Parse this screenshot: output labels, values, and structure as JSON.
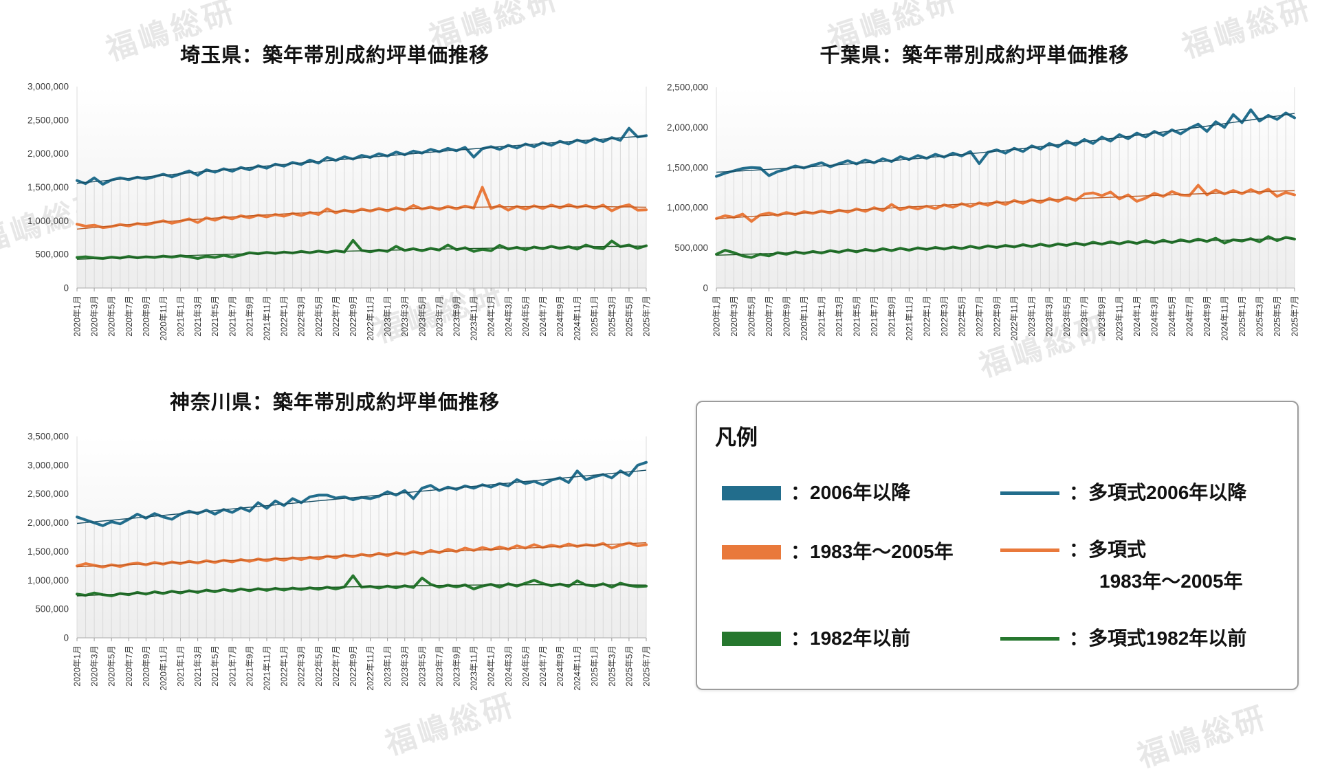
{
  "watermark": {
    "text": "福嶋総研"
  },
  "colors": {
    "s2006": "#226d8c",
    "s1983": "#e9793b",
    "s1982": "#26772e",
    "t2006": "#174f66",
    "t1983": "#c05a20",
    "t1982": "#1b5a22",
    "dropline": "#d8d8d8",
    "axis": "#b9b9b9",
    "plot_edge": "#dcdcdc",
    "tick_label": "#3c3c3c"
  },
  "legend": {
    "title": "凡例",
    "rows": [
      {
        "left": {
          "label": "：2006年以降",
          "swatch": "thick-bar"
        },
        "right": {
          "label": "：多項式2006年以降",
          "swatch": "thin-line"
        }
      },
      {
        "left": {
          "label": "：1983年〜2005年",
          "swatch": "thick-bar"
        },
        "right": {
          "label": "：多項式",
          "label2": "1983年〜2005年",
          "swatch": "thin-line"
        }
      },
      {
        "left": {
          "label": "：1982年以前",
          "swatch": "thick-bar"
        },
        "right": {
          "label": "：多項式1982年以前",
          "swatch": "thin-line"
        }
      }
    ]
  },
  "chart_data": [
    {
      "type": "line",
      "title": "埼玉県：築年帯別成約坪単価推移",
      "xlabel": "",
      "ylabel": "",
      "ylim": [
        0,
        3000000
      ],
      "y_tick_step": 500000,
      "x_interval": "monthly",
      "x_tick_every": 2,
      "droplines_to": "2006年以降",
      "x_tick_labels": [
        "2020年1月",
        "2020年3月",
        "2020年5月",
        "2020年7月",
        "2020年9月",
        "2020年11月",
        "2021年1月",
        "2021年3月",
        "2021年5月",
        "2021年7月",
        "2021年9月",
        "2021年11月",
        "2022年1月",
        "2022年3月",
        "2022年5月",
        "2022年7月",
        "2022年9月",
        "2022年11月",
        "2023年1月",
        "2023年3月",
        "2023年5月",
        "2023年7月",
        "2023年9月",
        "2023年11月",
        "2024年1月",
        "2024年3月",
        "2024年5月",
        "2024年7月",
        "2024年9月",
        "2024年11月",
        "2025年1月",
        "2025年3月",
        "2025年5月",
        "2025年7月"
      ],
      "series": [
        {
          "name": "2006年以降",
          "color": "#226d8c",
          "width": 4,
          "values": [
            1600000,
            1555000,
            1640000,
            1545000,
            1610000,
            1640000,
            1615000,
            1650000,
            1625000,
            1660000,
            1695000,
            1655000,
            1700000,
            1745000,
            1680000,
            1760000,
            1725000,
            1775000,
            1740000,
            1795000,
            1760000,
            1820000,
            1785000,
            1845000,
            1815000,
            1870000,
            1840000,
            1905000,
            1860000,
            1945000,
            1900000,
            1955000,
            1920000,
            1975000,
            1945000,
            2000000,
            1965000,
            2025000,
            1985000,
            2040000,
            2010000,
            2065000,
            2030000,
            2080000,
            2045000,
            2095000,
            1950000,
            2075000,
            2105000,
            2065000,
            2125000,
            2085000,
            2145000,
            2105000,
            2165000,
            2125000,
            2185000,
            2145000,
            2205000,
            2165000,
            2225000,
            2180000,
            2240000,
            2200000,
            2380000,
            2250000,
            2270000
          ]
        },
        {
          "name": "1983年〜2005年",
          "color": "#e9793b",
          "width": 4,
          "values": [
            950000,
            920000,
            935000,
            900000,
            915000,
            945000,
            925000,
            960000,
            940000,
            975000,
            1000000,
            965000,
            995000,
            1030000,
            975000,
            1045000,
            1010000,
            1060000,
            1030000,
            1075000,
            1045000,
            1085000,
            1060000,
            1095000,
            1070000,
            1110000,
            1080000,
            1125000,
            1095000,
            1180000,
            1120000,
            1160000,
            1130000,
            1175000,
            1145000,
            1185000,
            1150000,
            1195000,
            1160000,
            1230000,
            1175000,
            1205000,
            1170000,
            1215000,
            1180000,
            1220000,
            1190000,
            1500000,
            1185000,
            1230000,
            1160000,
            1215000,
            1175000,
            1225000,
            1185000,
            1235000,
            1195000,
            1240000,
            1200000,
            1230000,
            1190000,
            1235000,
            1150000,
            1210000,
            1240000,
            1160000,
            1165000
          ]
        },
        {
          "name": "1982年以前",
          "color": "#26772e",
          "width": 4,
          "values": [
            455000,
            465000,
            450000,
            440000,
            460000,
            445000,
            470000,
            450000,
            465000,
            455000,
            475000,
            460000,
            480000,
            465000,
            440000,
            470000,
            455000,
            485000,
            460000,
            490000,
            525000,
            510000,
            530000,
            515000,
            535000,
            520000,
            545000,
            525000,
            550000,
            530000,
            555000,
            535000,
            710000,
            560000,
            540000,
            565000,
            545000,
            620000,
            560000,
            585000,
            555000,
            590000,
            565000,
            640000,
            570000,
            600000,
            545000,
            575000,
            555000,
            635000,
            580000,
            605000,
            570000,
            610000,
            585000,
            620000,
            590000,
            615000,
            580000,
            640000,
            600000,
            585000,
            700000,
            615000,
            640000,
            590000,
            630000
          ]
        }
      ],
      "trend_series": [
        {
          "name": "多項式2006年以降",
          "fit": "poly2",
          "of": 0,
          "color": "#174f66"
        },
        {
          "name": "多項式1983年〜2005年",
          "fit": "poly2",
          "of": 1,
          "color": "#c05a20"
        },
        {
          "name": "多項式1982年以前",
          "fit": "poly2",
          "of": 2,
          "color": "#1b5a22"
        }
      ]
    },
    {
      "type": "line",
      "title": "千葉県：築年帯別成約坪単価推移",
      "xlabel": "",
      "ylabel": "",
      "ylim": [
        0,
        2500000
      ],
      "y_tick_step": 500000,
      "x_interval": "monthly",
      "x_tick_every": 2,
      "droplines_to": "2006年以降",
      "x_tick_labels": [
        "2020年1月",
        "2020年3月",
        "2020年5月",
        "2020年7月",
        "2020年9月",
        "2020年11月",
        "2021年1月",
        "2021年3月",
        "2021年5月",
        "2021年7月",
        "2021年9月",
        "2021年11月",
        "2022年1月",
        "2022年3月",
        "2022年5月",
        "2022年7月",
        "2022年9月",
        "2022年11月",
        "2023年1月",
        "2023年3月",
        "2023年5月",
        "2023年7月",
        "2023年9月",
        "2023年11月",
        "2024年1月",
        "2024年3月",
        "2024年5月",
        "2024年7月",
        "2024年9月",
        "2024年11月",
        "2025年1月",
        "2025年3月",
        "2025年5月",
        "2025年7月"
      ],
      "series": [
        {
          "name": "2006年以降",
          "color": "#226d8c",
          "width": 4,
          "values": [
            1390000,
            1430000,
            1460000,
            1490000,
            1500000,
            1495000,
            1400000,
            1450000,
            1480000,
            1520000,
            1495000,
            1530000,
            1560000,
            1510000,
            1550000,
            1585000,
            1545000,
            1595000,
            1560000,
            1610000,
            1575000,
            1635000,
            1600000,
            1650000,
            1615000,
            1665000,
            1630000,
            1680000,
            1645000,
            1700000,
            1550000,
            1690000,
            1720000,
            1680000,
            1740000,
            1700000,
            1770000,
            1730000,
            1800000,
            1760000,
            1830000,
            1780000,
            1850000,
            1800000,
            1880000,
            1830000,
            1910000,
            1860000,
            1930000,
            1880000,
            1950000,
            1900000,
            1970000,
            1920000,
            1990000,
            2040000,
            1950000,
            2070000,
            2000000,
            2160000,
            2060000,
            2220000,
            2080000,
            2150000,
            2100000,
            2180000,
            2120000
          ]
        },
        {
          "name": "1983年〜2005年",
          "color": "#e9793b",
          "width": 4,
          "values": [
            865000,
            900000,
            880000,
            920000,
            830000,
            910000,
            935000,
            905000,
            940000,
            915000,
            950000,
            930000,
            960000,
            935000,
            970000,
            945000,
            985000,
            955000,
            1000000,
            965000,
            1040000,
            975000,
            1010000,
            985000,
            1020000,
            990000,
            1035000,
            1005000,
            1050000,
            1015000,
            1060000,
            1030000,
            1075000,
            1040000,
            1090000,
            1055000,
            1100000,
            1065000,
            1115000,
            1080000,
            1130000,
            1090000,
            1170000,
            1185000,
            1150000,
            1195000,
            1110000,
            1160000,
            1080000,
            1120000,
            1180000,
            1140000,
            1200000,
            1160000,
            1150000,
            1280000,
            1160000,
            1220000,
            1170000,
            1215000,
            1175000,
            1225000,
            1180000,
            1230000,
            1140000,
            1190000,
            1160000
          ]
        },
        {
          "name": "1982年以前",
          "color": "#26772e",
          "width": 4,
          "values": [
            420000,
            470000,
            440000,
            400000,
            380000,
            420000,
            400000,
            440000,
            420000,
            450000,
            430000,
            455000,
            435000,
            465000,
            445000,
            475000,
            450000,
            480000,
            460000,
            490000,
            465000,
            495000,
            470000,
            500000,
            480000,
            505000,
            485000,
            510000,
            490000,
            520000,
            495000,
            525000,
            505000,
            530000,
            510000,
            540000,
            515000,
            545000,
            520000,
            550000,
            530000,
            560000,
            535000,
            570000,
            545000,
            575000,
            550000,
            580000,
            555000,
            590000,
            560000,
            595000,
            565000,
            600000,
            575000,
            610000,
            580000,
            620000,
            560000,
            600000,
            585000,
            615000,
            575000,
            640000,
            590000,
            630000,
            610000
          ]
        }
      ],
      "trend_series": [
        {
          "name": "多項式2006年以降",
          "fit": "poly2",
          "of": 0,
          "color": "#174f66"
        },
        {
          "name": "多項式1983年〜2005年",
          "fit": "poly2",
          "of": 1,
          "color": "#c05a20"
        },
        {
          "name": "多項式1982年以前",
          "fit": "poly2",
          "of": 2,
          "color": "#1b5a22"
        }
      ]
    },
    {
      "type": "line",
      "title": "神奈川県：築年帯別成約坪単価推移",
      "xlabel": "",
      "ylabel": "",
      "ylim": [
        0,
        3500000
      ],
      "y_tick_step": 500000,
      "x_interval": "monthly",
      "x_tick_every": 2,
      "droplines_to": "2006年以降",
      "x_tick_labels": [
        "2020年1月",
        "2020年3月",
        "2020年5月",
        "2020年7月",
        "2020年9月",
        "2020年11月",
        "2021年1月",
        "2021年3月",
        "2021年5月",
        "2021年7月",
        "2021年9月",
        "2021年11月",
        "2022年1月",
        "2022年3月",
        "2022年5月",
        "2022年7月",
        "2022年9月",
        "2022年11月",
        "2023年1月",
        "2023年3月",
        "2023年5月",
        "2023年7月",
        "2023年9月",
        "2023年11月",
        "2024年1月",
        "2024年3月",
        "2024年5月",
        "2024年7月",
        "2024年9月",
        "2024年11月",
        "2025年1月",
        "2025年3月",
        "2025年5月",
        "2025年7月"
      ],
      "series": [
        {
          "name": "2006年以降",
          "color": "#226d8c",
          "width": 4,
          "values": [
            2100000,
            2050000,
            2000000,
            1950000,
            2020000,
            1980000,
            2060000,
            2150000,
            2080000,
            2160000,
            2100000,
            2060000,
            2150000,
            2200000,
            2160000,
            2220000,
            2150000,
            2230000,
            2180000,
            2260000,
            2200000,
            2350000,
            2250000,
            2380000,
            2300000,
            2420000,
            2350000,
            2450000,
            2480000,
            2480000,
            2430000,
            2450000,
            2400000,
            2440000,
            2420000,
            2460000,
            2540000,
            2480000,
            2560000,
            2420000,
            2600000,
            2650000,
            2560000,
            2620000,
            2580000,
            2640000,
            2600000,
            2660000,
            2620000,
            2680000,
            2640000,
            2750000,
            2680000,
            2720000,
            2660000,
            2740000,
            2780000,
            2700000,
            2900000,
            2750000,
            2800000,
            2840000,
            2780000,
            2900000,
            2820000,
            3000000,
            3050000
          ]
        },
        {
          "name": "1983年〜2005年",
          "color": "#e9793b",
          "width": 4,
          "values": [
            1250000,
            1290000,
            1260000,
            1230000,
            1270000,
            1240000,
            1280000,
            1300000,
            1270000,
            1310000,
            1280000,
            1320000,
            1290000,
            1330000,
            1300000,
            1340000,
            1310000,
            1350000,
            1320000,
            1360000,
            1330000,
            1370000,
            1340000,
            1380000,
            1350000,
            1390000,
            1360000,
            1400000,
            1370000,
            1420000,
            1390000,
            1440000,
            1410000,
            1450000,
            1420000,
            1470000,
            1430000,
            1480000,
            1450000,
            1500000,
            1460000,
            1520000,
            1480000,
            1540000,
            1500000,
            1560000,
            1520000,
            1570000,
            1530000,
            1580000,
            1540000,
            1600000,
            1560000,
            1620000,
            1570000,
            1610000,
            1580000,
            1630000,
            1590000,
            1620000,
            1600000,
            1640000,
            1560000,
            1610000,
            1650000,
            1600000,
            1620000
          ]
        },
        {
          "name": "1982年以前",
          "color": "#26772e",
          "width": 4,
          "values": [
            760000,
            740000,
            780000,
            750000,
            730000,
            770000,
            750000,
            790000,
            760000,
            800000,
            770000,
            810000,
            780000,
            820000,
            790000,
            830000,
            800000,
            840000,
            810000,
            850000,
            820000,
            855000,
            825000,
            860000,
            830000,
            865000,
            840000,
            870000,
            845000,
            880000,
            850000,
            885000,
            1080000,
            880000,
            895000,
            865000,
            900000,
            870000,
            905000,
            875000,
            1040000,
            930000,
            880000,
            915000,
            885000,
            920000,
            850000,
            900000,
            930000,
            880000,
            940000,
            900000,
            950000,
            1000000,
            945000,
            905000,
            935000,
            895000,
            990000,
            920000,
            900000,
            940000,
            880000,
            950000,
            910000,
            890000,
            900000
          ]
        }
      ],
      "trend_series": [
        {
          "name": "多項式2006年以降",
          "fit": "poly2",
          "of": 0,
          "color": "#174f66"
        },
        {
          "name": "多項式1983年〜2005年",
          "fit": "poly2",
          "of": 1,
          "color": "#c05a20"
        },
        {
          "name": "多項式1982年以前",
          "fit": "poly2",
          "of": 2,
          "color": "#1b5a22"
        }
      ]
    }
  ]
}
